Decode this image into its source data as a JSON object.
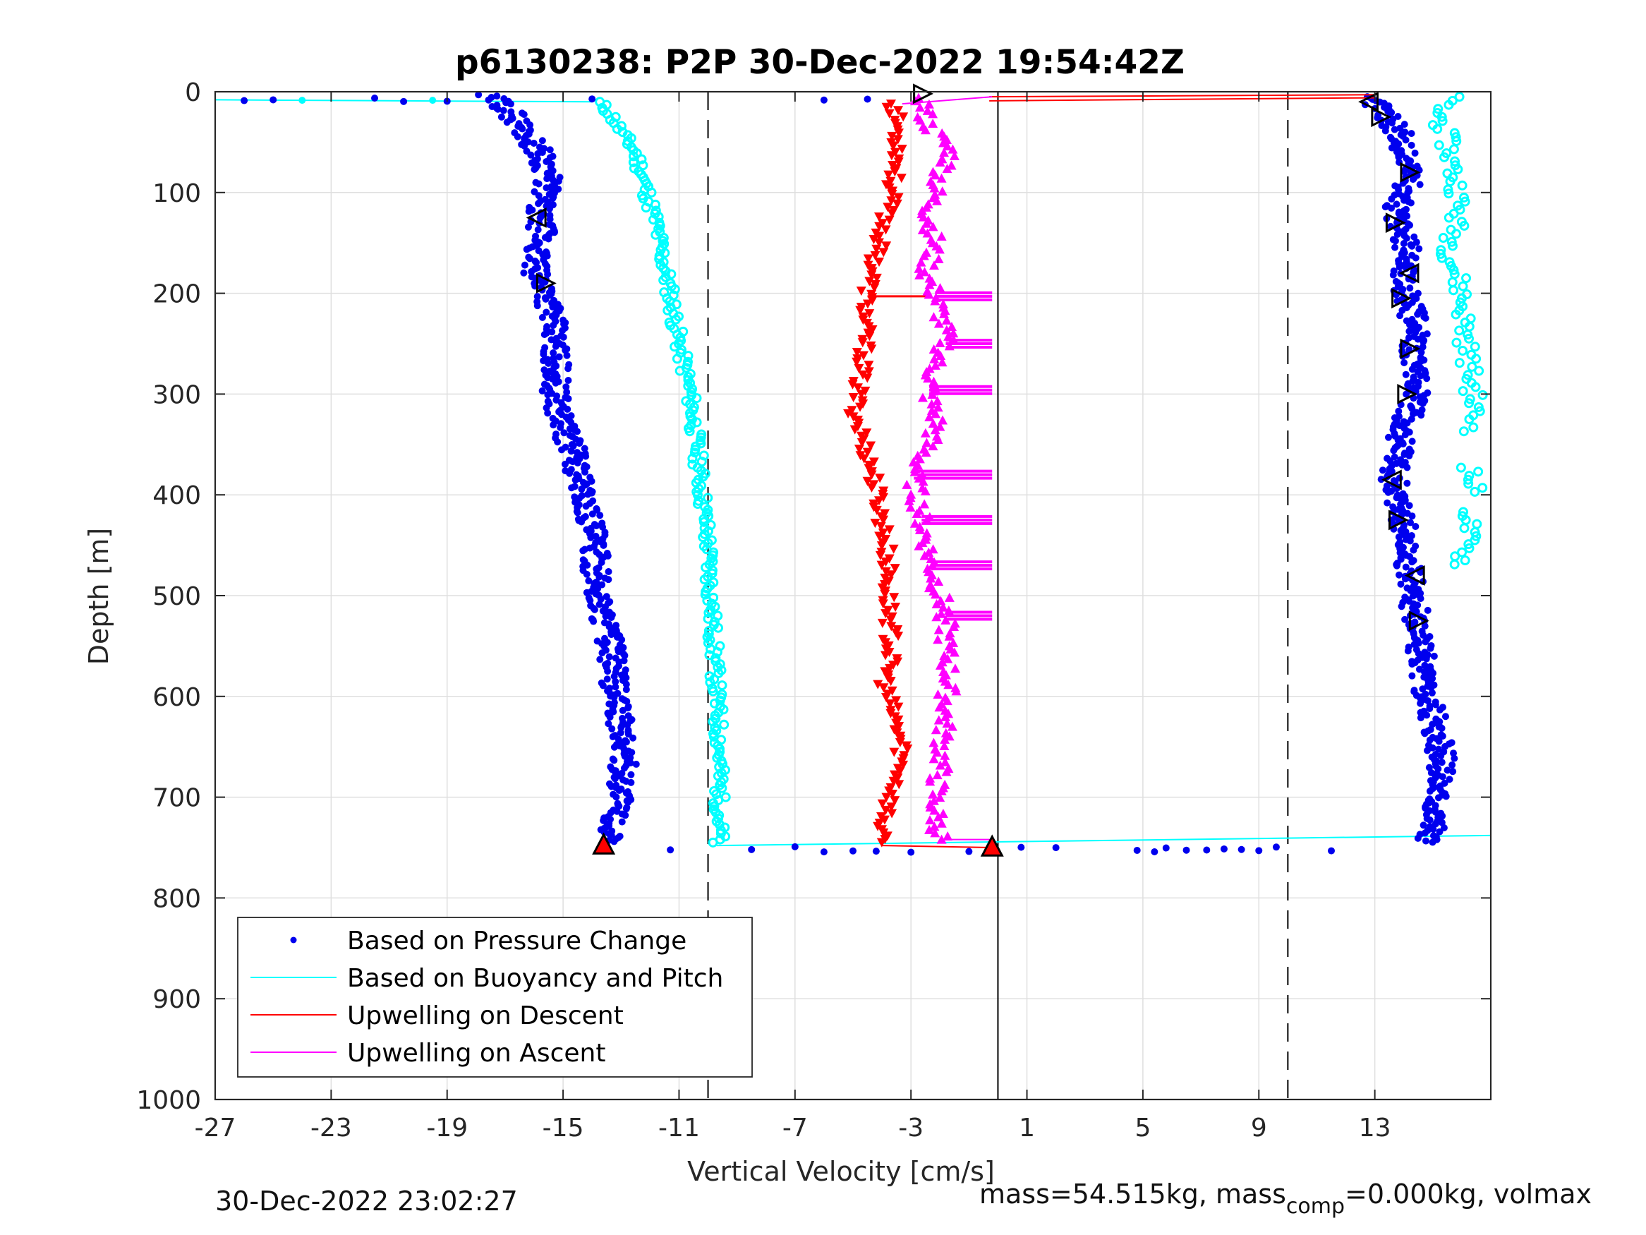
{
  "chart_data": {
    "type": "scatter",
    "title": "p6130238: P2P 30-Dec-2022 19:54:42Z",
    "xlabel": "Vertical Velocity [cm/s]",
    "ylabel": "Depth [m]",
    "xlim": [
      -27,
      17
    ],
    "ylim": [
      0,
      1000
    ],
    "y_reversed": true,
    "grid": true,
    "xticks": [
      -27,
      -23,
      -19,
      -15,
      -11,
      -7,
      -3,
      1,
      5,
      9,
      13
    ],
    "yticks": [
      0,
      100,
      200,
      300,
      400,
      500,
      600,
      700,
      800,
      900,
      1000
    ],
    "reference_lines": {
      "dashed_x": [
        -10,
        10
      ],
      "solid_x": [
        0
      ]
    },
    "legend": {
      "position": "bottom-left",
      "entries": [
        "Based on Pressure Change",
        "Based on Buoyancy and Pitch",
        "Upwelling on Descent",
        "Upwelling on Ascent"
      ]
    },
    "colors": {
      "pressure": "#0000ee",
      "buoyancy": "#00ffff",
      "descent": "#ff0000",
      "ascent": "#ff00ff"
    },
    "series": [
      {
        "name": "Based on Pressure Change",
        "style": "dots",
        "segments": [
          {
            "depth": [
              3,
              10,
              20,
              40,
              60,
              80,
              100,
              120,
              140,
              160,
              180,
              200,
              220,
              250,
              280,
              300,
              330,
              360,
              400,
              430,
              460,
              500,
              530,
              560,
              600,
              630,
              660,
              700,
              730,
              745
            ],
            "velocity": [
              -17.8,
              -17.2,
              -16.8,
              -16.3,
              -15.8,
              -15.5,
              -15.6,
              -15.9,
              -15.7,
              -15.9,
              -16.0,
              -15.5,
              -15.4,
              -15.3,
              -15.2,
              -15.3,
              -15.0,
              -14.6,
              -14.3,
              -14.0,
              -13.9,
              -13.8,
              -13.5,
              -13.3,
              -13.2,
              -13.0,
              -12.9,
              -13.0,
              -13.3,
              -13.6
            ]
          },
          {
            "depth": [
              5,
              8,
              10,
              15,
              20,
              40,
              60,
              80,
              100,
              120,
              140,
              160,
              180,
              200,
              220,
              250,
              280,
              300,
              330,
              360,
              380,
              400,
              430,
              460,
              500,
              530,
              560,
              600,
              630,
              660,
              700,
              730,
              745
            ],
            "velocity": [
              12.5,
              12.8,
              13.0,
              13.2,
              13.4,
              13.8,
              14.0,
              14.3,
              14.0,
              13.7,
              13.9,
              14.2,
              14.0,
              14.1,
              14.3,
              14.4,
              14.3,
              14.5,
              14.0,
              13.8,
              13.6,
              13.8,
              14.0,
              14.1,
              14.3,
              14.5,
              14.6,
              14.8,
              15.1,
              15.3,
              15.2,
              15.0,
              14.8
            ]
          }
        ],
        "surface_points": {
          "depth": 7,
          "velocity": [
            -26.0,
            -25.0,
            -21.5,
            -20.5,
            -19.0,
            -14.0,
            -6.0,
            -4.5
          ]
        },
        "bottom_points": {
          "depth": 752,
          "velocity": [
            -11.3,
            -8.5,
            -7.0,
            -6.0,
            -5.0,
            -4.2,
            -3.0,
            -1.0,
            -0.3,
            0.8,
            2.0,
            4.8,
            5.4,
            5.8,
            6.5,
            7.2,
            7.8,
            8.4,
            9.0,
            9.6,
            11.5
          ]
        },
        "marker_triangles": [
          {
            "depth": 2,
            "velocity": -2.6,
            "dir": "right"
          },
          {
            "depth": 125,
            "velocity": -15.9,
            "dir": "left"
          },
          {
            "depth": 190,
            "velocity": -15.6,
            "dir": "right"
          },
          {
            "depth": 10,
            "velocity": 12.8,
            "dir": "left"
          },
          {
            "depth": 25,
            "velocity": 13.2,
            "dir": "right"
          },
          {
            "depth": 80,
            "velocity": 14.2,
            "dir": "right"
          },
          {
            "depth": 130,
            "velocity": 13.7,
            "dir": "right"
          },
          {
            "depth": 180,
            "velocity": 14.2,
            "dir": "left"
          },
          {
            "depth": 205,
            "velocity": 13.9,
            "dir": "right"
          },
          {
            "depth": 255,
            "velocity": 14.2,
            "dir": "right"
          },
          {
            "depth": 300,
            "velocity": 14.1,
            "dir": "right"
          },
          {
            "depth": 385,
            "velocity": 13.6,
            "dir": "left"
          },
          {
            "depth": 425,
            "velocity": 13.8,
            "dir": "right"
          },
          {
            "depth": 480,
            "velocity": 14.4,
            "dir": "left"
          },
          {
            "depth": 525,
            "velocity": 14.5,
            "dir": "right"
          }
        ]
      },
      {
        "name": "Based on Buoyancy and Pitch",
        "style": "line+circles",
        "descent": {
          "depth": [
            10,
            20,
            40,
            60,
            80,
            100,
            130,
            160,
            200,
            250,
            300,
            350,
            400,
            450,
            500,
            550,
            600,
            650,
            700,
            740,
            745
          ],
          "velocity": [
            -13.8,
            -13.4,
            -13.0,
            -12.5,
            -12.3,
            -12.1,
            -11.8,
            -11.6,
            -11.3,
            -11.0,
            -10.6,
            -10.4,
            -10.2,
            -10.0,
            -9.9,
            -9.8,
            -9.7,
            -9.6,
            -9.6,
            -9.6,
            -9.7
          ]
        },
        "ascent": {
          "depth": [
            5,
            20,
            40,
            60,
            80,
            100,
            130,
            160,
            200,
            230,
            260,
            300,
            320,
            380,
            390,
            420,
            440,
            470
          ],
          "velocity": [
            15.6,
            15.2,
            15.4,
            15.6,
            15.7,
            15.9,
            15.8,
            15.6,
            16.0,
            16.1,
            16.2,
            16.4,
            16.4,
            16.3,
            16.4,
            16.3,
            16.2,
            16.0
          ]
        },
        "surface_line": {
          "depth": [
            8,
            10
          ],
          "velocity": [
            -27,
            -14
          ]
        },
        "bottom_line": {
          "depth": [
            748,
            738
          ],
          "velocity": [
            -9.7,
            17
          ]
        }
      },
      {
        "name": "Upwelling on Descent",
        "style": "line+down-triangles",
        "depth": [
          10,
          30,
          60,
          90,
          120,
          150,
          180,
          200,
          230,
          260,
          290,
          320,
          350,
          380,
          410,
          440,
          470,
          500,
          530,
          560,
          590,
          620,
          650,
          680,
          710,
          740,
          748
        ],
        "velocity": [
          -3.6,
          -3.5,
          -3.4,
          -3.6,
          -3.8,
          -4.1,
          -4.3,
          -4.5,
          -4.6,
          -4.6,
          -4.8,
          -4.9,
          -4.6,
          -4.3,
          -4.1,
          -3.9,
          -3.8,
          -3.8,
          -3.7,
          -3.7,
          -3.9,
          -3.6,
          -3.3,
          -3.4,
          -3.8,
          -4.1,
          -4.0
        ],
        "surface_line": {
          "depth": [
            5,
            3
          ],
          "velocity": [
            -0.3,
            13.0
          ]
        },
        "bottom_triangle": {
          "depth": 748,
          "velocity": -13.6
        }
      },
      {
        "name": "Upwelling on Ascent",
        "style": "line+up-triangles",
        "depth": [
          5,
          30,
          60,
          90,
          120,
          150,
          180,
          200,
          230,
          250,
          270,
          300,
          330,
          360,
          380,
          400,
          430,
          470,
          500,
          520,
          550,
          580,
          610,
          640,
          670,
          700,
          730,
          745
        ],
        "velocity": [
          -2.6,
          -2.5,
          -1.6,
          -2.1,
          -2.4,
          -2.2,
          -2.5,
          -2.2,
          -1.9,
          -1.8,
          -2.2,
          -2.4,
          -2.1,
          -2.6,
          -2.9,
          -2.8,
          -2.6,
          -2.3,
          -2.0,
          -1.8,
          -1.8,
          -1.7,
          -1.8,
          -1.9,
          -2.0,
          -2.2,
          -2.1,
          -1.9
        ],
        "bottom_triangle": {
          "depth": 750,
          "velocity": -0.2
        }
      }
    ]
  },
  "footer": {
    "timestamp": "30-Dec-2022 23:02:27",
    "mass_prefix": "mass=54.515kg, mass",
    "mass_sub": "comp",
    "mass_suffix": "=0.000kg, volmax"
  }
}
